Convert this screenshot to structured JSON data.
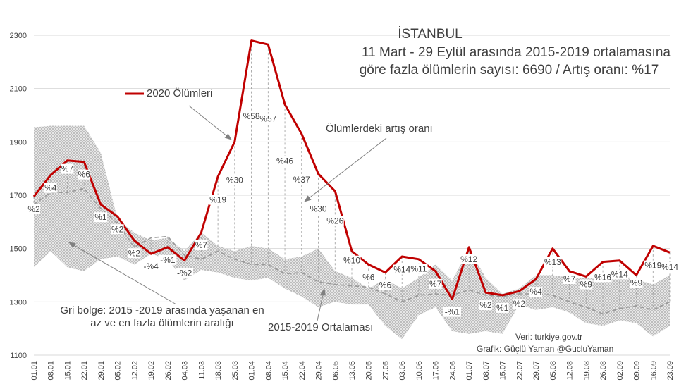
{
  "title_line1": "İSTANBUL",
  "title_line2": "11 Mart - 29 Eylül arasında 2015-2019 ortalamasına",
  "title_line3": "göre fazla ölümlerin sayısı: 6690 / Artış oranı: %17",
  "annotations": {
    "legend_2020": "2020 Ölümleri",
    "increase_rate": "Ölümlerdeki artış oranı",
    "gray_zone_line1": "Gri bölge: 2015 -2019 arasında yaşanan en",
    "gray_zone_line2": "az ve en fazla ölümlerin aralığı",
    "average": "2015-2019 Ortalaması"
  },
  "source_line1": "Veri: turkiye.gov.tr",
  "source_line2": "Grafik: Güçlü Yaman @GucluYaman",
  "colors": {
    "line_2020": "#c00000",
    "average": "#999999",
    "range_fill": "#d0d0d0",
    "grid": "#d9d9d9",
    "text": "#404040"
  },
  "chart_data": {
    "type": "line",
    "ylim": [
      1100,
      2300
    ],
    "yticks": [
      1100,
      1300,
      1500,
      1700,
      1900,
      2100,
      2300
    ],
    "x": [
      "01.01",
      "08.01",
      "15.01",
      "22.01",
      "29.01",
      "05.02",
      "12.02",
      "19.02",
      "26.02",
      "04.03",
      "11.03",
      "18.03",
      "25.03",
      "01.04",
      "08.04",
      "15.04",
      "22.04",
      "29.04",
      "06.05",
      "13.05",
      "20.05",
      "27.05",
      "03.06",
      "10.06",
      "17.06",
      "24.06",
      "01.07",
      "08.07",
      "15.07",
      "22.07",
      "29.07",
      "05.08",
      "12.08",
      "19.08",
      "26.08",
      "02.09",
      "09.09",
      "16.09",
      "23.09"
    ],
    "series": [
      {
        "name": "2020 Ölümleri",
        "values": [
          1695,
          1775,
          1830,
          1825,
          1665,
          1620,
          1530,
          1480,
          1505,
          1455,
          1560,
          1770,
          1900,
          2280,
          2265,
          2040,
          1930,
          1780,
          1715,
          1490,
          1440,
          1410,
          1470,
          1460,
          1415,
          1310,
          1505,
          1335,
          1325,
          1340,
          1385,
          1500,
          1415,
          1395,
          1450,
          1455,
          1400,
          1510,
          1485
        ]
      },
      {
        "values": [
          1665,
          1710,
          1710,
          1725,
          1650,
          1595,
          1505,
          1540,
          1545,
          1475,
          1460,
          1490,
          1460,
          1440,
          1440,
          1405,
          1410,
          1375,
          1365,
          1360,
          1355,
          1330,
          1300,
          1325,
          1330,
          1325,
          1345,
          1325,
          1320,
          1330,
          1330,
          1325,
          1300,
          1280,
          1255,
          1275,
          1285,
          1270,
          1300
        ]
      },
      {
        "values": [
          1955,
          1960,
          1960,
          1960,
          1860,
          1610,
          1560,
          1530,
          1540,
          1490,
          1560,
          1510,
          1490,
          1510,
          1500,
          1460,
          1470,
          1500,
          1415,
          1390,
          1350,
          1385,
          1350,
          1390,
          1440,
          1380,
          1500,
          1390,
          1330,
          1350,
          1400,
          1400,
          1390,
          1390,
          1390,
          1400,
          1385,
          1365,
          1400
        ]
      },
      {
        "values": [
          1430,
          1490,
          1430,
          1415,
          1460,
          1470,
          1440,
          1480,
          1460,
          1380,
          1420,
          1410,
          1390,
          1380,
          1390,
          1350,
          1320,
          1280,
          1300,
          1290,
          1290,
          1210,
          1160,
          1250,
          1280,
          1190,
          1180,
          1190,
          1180,
          1290,
          1270,
          1280,
          1260,
          1220,
          1210,
          1230,
          1220,
          1170,
          1210
        ]
      }
    ],
    "data_labels": [
      {
        "i": 0,
        "text": "%2"
      },
      {
        "i": 1,
        "text": "%4"
      },
      {
        "i": 2,
        "text": "%7"
      },
      {
        "i": 3,
        "text": "%6"
      },
      {
        "i": 4,
        "text": "%1"
      },
      {
        "i": 5,
        "text": "%2"
      },
      {
        "i": 6,
        "text": "%2"
      },
      {
        "i": 7,
        "text": "-%4"
      },
      {
        "i": 8,
        "text": "-%1"
      },
      {
        "i": 9,
        "text": "-%2"
      },
      {
        "i": 10,
        "text": "%7"
      },
      {
        "i": 11,
        "text": "%19"
      },
      {
        "i": 12,
        "text": "%30"
      },
      {
        "i": 13,
        "text": "%58"
      },
      {
        "i": 14,
        "text": "%57"
      },
      {
        "i": 15,
        "text": "%46"
      },
      {
        "i": 16,
        "text": "%37"
      },
      {
        "i": 17,
        "text": "%30"
      },
      {
        "i": 18,
        "text": "%26"
      },
      {
        "i": 19,
        "text": "%10"
      },
      {
        "i": 20,
        "text": "%6"
      },
      {
        "i": 21,
        "text": "%6"
      },
      {
        "i": 22,
        "text": "%14"
      },
      {
        "i": 23,
        "text": "%11"
      },
      {
        "i": 24,
        "text": "%7"
      },
      {
        "i": 25,
        "text": "-%1"
      },
      {
        "i": 26,
        "text": "%12"
      },
      {
        "i": 27,
        "text": "%2"
      },
      {
        "i": 28,
        "text": "%1"
      },
      {
        "i": 29,
        "text": "%2"
      },
      {
        "i": 30,
        "text": "%4"
      },
      {
        "i": 31,
        "text": "%13"
      },
      {
        "i": 32,
        "text": "%7"
      },
      {
        "i": 33,
        "text": "%9"
      },
      {
        "i": 34,
        "text": "%16"
      },
      {
        "i": 35,
        "text": "%14"
      },
      {
        "i": 36,
        "text": "%9"
      },
      {
        "i": 37,
        "text": "%19"
      },
      {
        "i": 38,
        "text": "%14"
      }
    ],
    "grid": true
  }
}
